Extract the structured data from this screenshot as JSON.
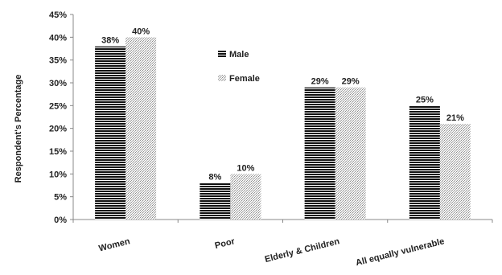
{
  "chart_data": {
    "type": "bar",
    "categories": [
      "Women",
      "Poor",
      "Elderly & Children",
      "All equally vulnerable"
    ],
    "series": [
      {
        "name": "Male",
        "values": [
          38,
          8,
          29,
          25
        ],
        "labels": [
          "38%",
          "8%",
          "29%",
          "25%"
        ]
      },
      {
        "name": "Female",
        "values": [
          40,
          10,
          29,
          21
        ],
        "labels": [
          "40%",
          "10%",
          "29%",
          "21%"
        ]
      }
    ],
    "ylabel": "Respondent's Percentage",
    "xlabel": "",
    "ylim": [
      0,
      45
    ],
    "yticks": [
      "0%",
      "5%",
      "10%",
      "15%",
      "20%",
      "25%",
      "30%",
      "35%",
      "40%",
      "45%"
    ],
    "grid": false,
    "legend_position": "inside, upper-left of plot"
  }
}
